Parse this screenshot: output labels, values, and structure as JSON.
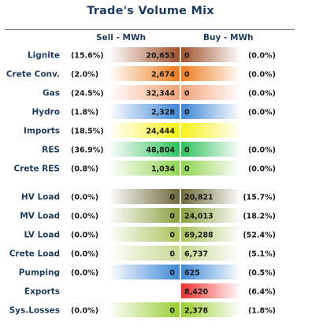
{
  "page": {
    "title": "Trade's Volume Mix",
    "sell_header": "Sell - MWh",
    "buy_header": "Buy - MWh"
  },
  "colors": {
    "title": "#1f3b5a",
    "rule": "#6f85a0"
  },
  "chart_data": {
    "type": "table",
    "title": "Trade's Volume Mix",
    "columns": [
      "Sell - MWh",
      "Buy - MWh"
    ],
    "rows": [
      {
        "label": "Lignite",
        "sell_pct": "(15.6%)",
        "sell": "20,653",
        "sell_value": 20653,
        "buy": "0",
        "buy_value": 0,
        "buy_pct": "(0.0%)",
        "color": "#a0522d"
      },
      {
        "label": "Crete Conv.",
        "sell_pct": "(2.0%)",
        "sell": "2,674",
        "sell_value": 2674,
        "buy": "0",
        "buy_value": 0,
        "buy_pct": "(0.0%)",
        "color": "#f07c1e"
      },
      {
        "label": "Gas",
        "sell_pct": "(24.5%)",
        "sell": "32,344",
        "sell_value": 32344,
        "buy": "0",
        "buy_value": 0,
        "buy_pct": "(0.0%)",
        "color": "#f4a37a"
      },
      {
        "label": "Hydro",
        "sell_pct": "(1.8%)",
        "sell": "2,328",
        "sell_value": 2328,
        "buy": "0",
        "buy_value": 0,
        "buy_pct": "(0.0%)",
        "color": "#3d86d6"
      },
      {
        "label": "Imports",
        "sell_pct": "(18.5%)",
        "sell": "24,444",
        "sell_value": 24444,
        "buy": "",
        "buy_value": null,
        "buy_pct": "",
        "color": "#f6f216"
      },
      {
        "label": "RES",
        "sell_pct": "(36.9%)",
        "sell": "48,804",
        "sell_value": 48804,
        "buy": "0",
        "buy_value": 0,
        "buy_pct": "(0.0%)",
        "color": "#2ec15a"
      },
      {
        "label": "Crete RES",
        "sell_pct": "(0.8%)",
        "sell": "1,034",
        "sell_value": 1034,
        "buy": "0",
        "buy_value": 0,
        "buy_pct": "(0.0%)",
        "color": "#8fd44f"
      },
      {
        "label": "HV Load",
        "sell_pct": "(0.0%)",
        "sell": "0",
        "sell_value": 0,
        "buy": "20,821",
        "buy_value": 20821,
        "buy_pct": "(15.7%)",
        "color": "#6b6a3a"
      },
      {
        "label": "MV Load",
        "sell_pct": "(0.0%)",
        "sell": "0",
        "sell_value": 0,
        "buy": "24,013",
        "buy_value": 24013,
        "buy_pct": "(18.2%)",
        "color": "#8aa040"
      },
      {
        "label": "LV Load",
        "sell_pct": "(0.0%)",
        "sell": "0",
        "sell_value": 0,
        "buy": "69,288",
        "buy_value": 69288,
        "buy_pct": "(52.4%)",
        "color": "#a9c25a"
      },
      {
        "label": "Crete Load",
        "sell_pct": "(0.0%)",
        "sell": "0",
        "sell_value": 0,
        "buy": "6,737",
        "buy_value": 6737,
        "buy_pct": "(5.1%)",
        "color": "#c8d892"
      },
      {
        "label": "Pumping",
        "sell_pct": "(0.0%)",
        "sell": "0",
        "sell_value": 0,
        "buy": "625",
        "buy_value": 625,
        "buy_pct": "(0.5%)",
        "color": "#3d86d6"
      },
      {
        "label": "Exports",
        "sell_pct": "",
        "sell": "",
        "sell_value": null,
        "buy": "8,420",
        "buy_value": 8420,
        "buy_pct": "(6.4%)",
        "color": "#f03030"
      },
      {
        "label": "Sys.Losses",
        "sell_pct": "(0.0%)",
        "sell": "0",
        "sell_value": 0,
        "buy": "2,378",
        "buy_value": 2378,
        "buy_pct": "(1.8%)",
        "color": "#9acd32"
      }
    ]
  }
}
